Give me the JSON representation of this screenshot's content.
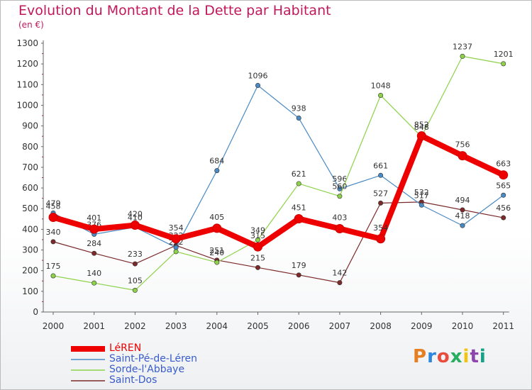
{
  "title": "Evolution du Montant de la Dette par Habitant",
  "subtitle": "(en €)",
  "logo": {
    "text": "Proxiti",
    "colors": [
      "#e67e22",
      "#2e86de",
      "#e74c3c",
      "#27ae60",
      "#f1c40f",
      "#8e44ad",
      "#16a085"
    ]
  },
  "chart_data": {
    "type": "line",
    "x": [
      "2000",
      "2001",
      "2002",
      "2003",
      "2004",
      "2005",
      "2006",
      "2007",
      "2008",
      "2009",
      "2010",
      "2011"
    ],
    "ylim": [
      0,
      1300
    ],
    "yticks": [
      0,
      100,
      200,
      300,
      400,
      500,
      600,
      700,
      800,
      900,
      1000,
      1100,
      1200,
      1300
    ],
    "grid": false,
    "legend": "bottom",
    "series": [
      {
        "name": "Saint-Dos",
        "color": "#7b2a2a",
        "values": [
          340,
          284,
          233,
          322,
          251,
          215,
          179,
          142,
          527,
          532,
          494,
          456
        ]
      },
      {
        "name": "Saint-Pé-de-Léren",
        "color": "#4a8ac4",
        "values": [
          479,
          376,
          410,
          312,
          684,
          1096,
          938,
          596,
          661,
          517,
          418,
          565
        ]
      },
      {
        "name": "Sorde-l'Abbaye",
        "color": "#8ed24a",
        "values": [
          175,
          140,
          105,
          292,
          240,
          349,
          621,
          560,
          1048,
          848,
          1237,
          1201
        ]
      },
      {
        "name": "LéREN",
        "color": "#ee0000",
        "values": [
          458,
          401,
          420,
          354,
          405,
          315,
          451,
          403,
          354,
          852,
          756,
          663
        ]
      }
    ],
    "legend_order": [
      "LéREN",
      "Saint-Pé-de-Léren",
      "Sorde-l'Abbaye",
      "Saint-Dos"
    ]
  }
}
